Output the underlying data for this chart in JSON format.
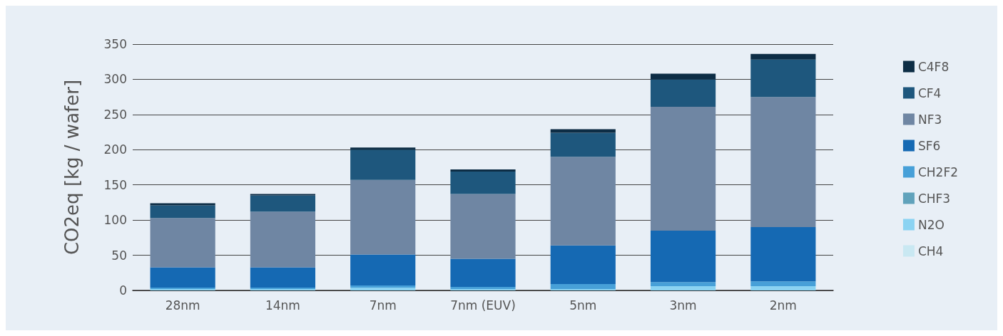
{
  "chart_data": {
    "type": "bar",
    "stacked": true,
    "ylabel": "CO2eq [kg / wafer]",
    "categories": [
      "28nm",
      "14nm",
      "7nm",
      "7nm (EUV)",
      "5nm",
      "3nm",
      "2nm"
    ],
    "series": [
      {
        "name": "CH4",
        "color": "#c9e8f2",
        "values": [
          null,
          null,
          null,
          null,
          null,
          null,
          null
        ]
      },
      {
        "name": "N2O",
        "color": "#8bd3f2",
        "values": [
          2,
          2,
          4,
          2,
          2,
          6,
          6
        ]
      },
      {
        "name": "CHF3",
        "color": "#60a2bb",
        "values": [
          null,
          null,
          null,
          null,
          null,
          null,
          null
        ]
      },
      {
        "name": "CH2F2",
        "color": "#47a0d8",
        "values": [
          2,
          2,
          3,
          3,
          7,
          6,
          7
        ]
      },
      {
        "name": "SF6",
        "color": "#1569b3",
        "values": [
          29,
          29,
          44,
          40,
          55,
          73,
          77
        ]
      },
      {
        "name": "NF3",
        "color": "#6f86a3",
        "values": [
          70,
          79,
          106,
          92,
          126,
          176,
          185
        ]
      },
      {
        "name": "CF4",
        "color": "#1e577d",
        "values": [
          18,
          23,
          43,
          32,
          34,
          39,
          53
        ]
      },
      {
        "name": "C4F8",
        "color": "#0d2d45",
        "values": [
          3,
          2,
          3,
          3,
          5,
          8,
          8
        ]
      }
    ],
    "ylim": [
      0,
      350
    ],
    "yticks": [
      0,
      50,
      100,
      150,
      200,
      250,
      300,
      350
    ],
    "grid": "y",
    "legend": "right"
  }
}
